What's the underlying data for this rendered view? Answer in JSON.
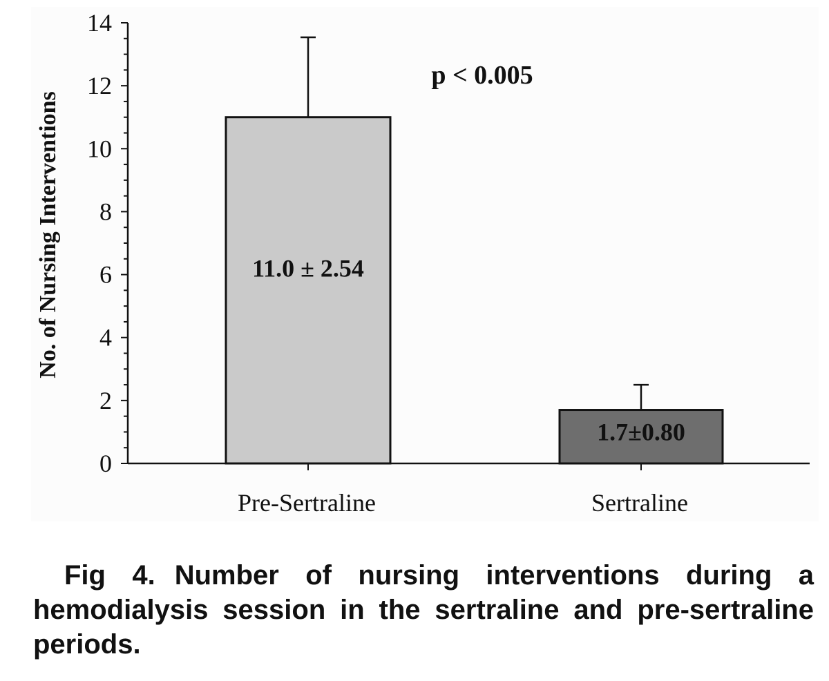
{
  "chart_data": {
    "type": "bar",
    "title": "",
    "xlabel": "",
    "ylabel": "No. of Nursing Interventions",
    "ylim": [
      0,
      14
    ],
    "yticks": [
      0,
      2,
      4,
      6,
      8,
      10,
      12,
      14
    ],
    "categories": [
      "Pre-Sertraline",
      "Sertraline"
    ],
    "values": [
      11.0,
      1.7
    ],
    "errors": [
      2.54,
      0.8
    ],
    "bar_labels": [
      "11.0 ± 2.54",
      "1.7±0.80"
    ],
    "bar_colors": [
      "#cacaca",
      "#6e6e6e"
    ],
    "annotation": "p < 0.005",
    "grid": false,
    "legend": "none"
  },
  "caption": {
    "figure_number": "Fig 4.",
    "text": "Number of nursing interventions during a hemodialysis session in the sertraline and pre-sertraline periods."
  }
}
